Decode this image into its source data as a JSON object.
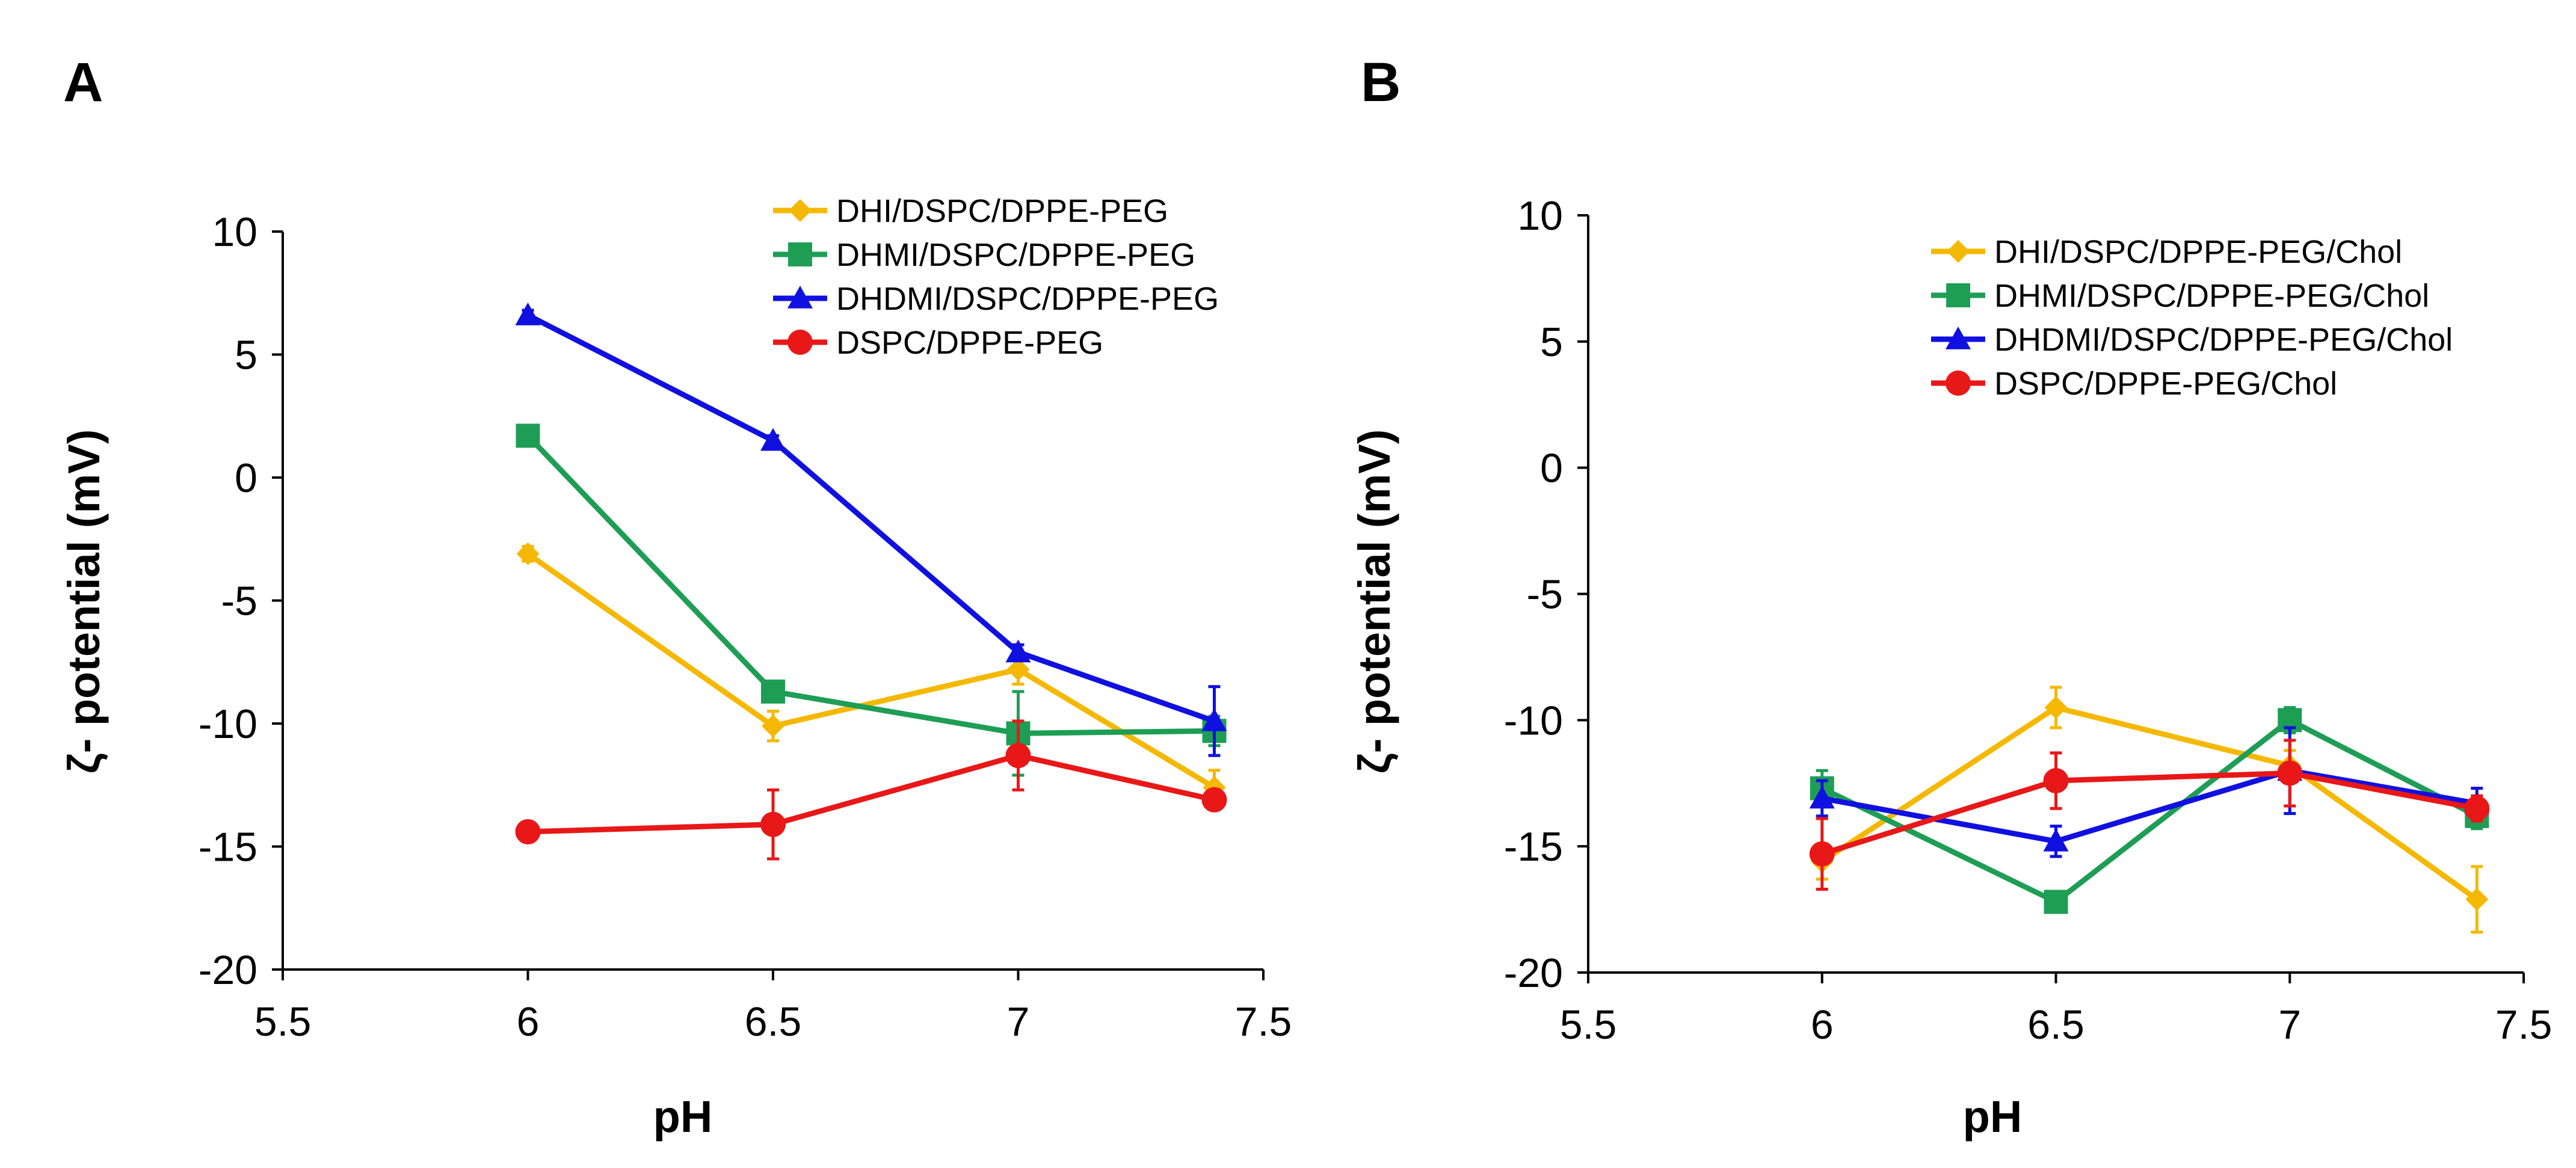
{
  "chart_data": [
    {
      "panel": "A",
      "type": "line",
      "xlabel": "pH",
      "ylabel": "ζ- potential (mV)",
      "xlim": [
        5.5,
        7.5
      ],
      "ylim": [
        -20,
        10
      ],
      "xticks": [
        "5.5",
        "6",
        "6.5",
        "7",
        "7.5"
      ],
      "yticks": [
        "10",
        "5",
        "0",
        "-5",
        "-10",
        "-15",
        "-20"
      ],
      "grid": false,
      "legend": "top-right",
      "series": [
        {
          "name": "DHI/DSPC/DPPE-PEG",
          "color": "#F5B800",
          "marker": "diamond",
          "x": [
            6,
            6.5,
            7,
            7.4
          ],
          "values": [
            -3.1,
            -10.1,
            -7.8,
            -12.6
          ],
          "errors": [
            0.3,
            0.6,
            0.6,
            0.7
          ]
        },
        {
          "name": "DHMI/DSPC/DPPE-PEG",
          "color": "#1E9E55",
          "marker": "square",
          "x": [
            6,
            6.5,
            7,
            7.4
          ],
          "values": [
            1.7,
            -8.7,
            -10.4,
            -10.3
          ],
          "errors": [
            0.3,
            0.4,
            1.7,
            0.6
          ]
        },
        {
          "name": "DHDMI/DSPC/DPPE-PEG",
          "color": "#1010E0",
          "marker": "triangle",
          "x": [
            6,
            6.5,
            7,
            7.4
          ],
          "values": [
            6.6,
            1.5,
            -7.1,
            -9.9
          ],
          "errors": [
            0.2,
            0.2,
            0.3,
            1.4
          ]
        },
        {
          "name": "DSPC/DPPE-PEG",
          "color": "#E81818",
          "marker": "circle",
          "x": [
            6,
            6.5,
            7,
            7.4
          ],
          "values": [
            -14.4,
            -14.1,
            -11.3,
            -13.1
          ],
          "errors": [
            0.4,
            1.4,
            1.4,
            0.4
          ]
        }
      ]
    },
    {
      "panel": "B",
      "type": "line",
      "xlabel": "pH",
      "ylabel": "ζ- potential (mV)",
      "xlim": [
        5.5,
        7.5
      ],
      "ylim": [
        -20,
        10
      ],
      "xticks": [
        "5.5",
        "6",
        "6.5",
        "7",
        "7.5"
      ],
      "yticks": [
        "10",
        "5",
        "0",
        "-5",
        "-10",
        "-15",
        "-20"
      ],
      "grid": false,
      "legend": "top-right",
      "series": [
        {
          "name": "DHI/DSPC/DPPE-PEG/Chol",
          "color": "#F5B800",
          "marker": "diamond",
          "x": [
            6,
            6.5,
            7,
            7.4
          ],
          "values": [
            -15.6,
            -9.5,
            -11.8,
            -17.1
          ],
          "errors": [
            0.7,
            0.8,
            0.6,
            1.3
          ]
        },
        {
          "name": "DHMI/DSPC/DPPE-PEG/Chol",
          "color": "#1E9E55",
          "marker": "square",
          "x": [
            6,
            6.5,
            7,
            7.4
          ],
          "values": [
            -12.7,
            -17.2,
            -10.0,
            -13.8
          ],
          "errors": [
            0.7,
            0.4,
            0.5,
            0.5
          ]
        },
        {
          "name": "DHDMI/DSPC/DPPE-PEG/Chol",
          "color": "#1010E0",
          "marker": "triangle",
          "x": [
            6,
            6.5,
            7,
            7.4
          ],
          "values": [
            -13.1,
            -14.8,
            -12.0,
            -13.3
          ],
          "errors": [
            0.7,
            0.6,
            1.7,
            0.6
          ]
        },
        {
          "name": "DSPC/DPPE-PEG/Chol",
          "color": "#E81818",
          "marker": "circle",
          "x": [
            6,
            6.5,
            7,
            7.4
          ],
          "values": [
            -15.3,
            -12.4,
            -12.1,
            -13.5
          ],
          "errors": [
            1.4,
            1.1,
            1.3,
            0.5
          ]
        }
      ]
    }
  ]
}
